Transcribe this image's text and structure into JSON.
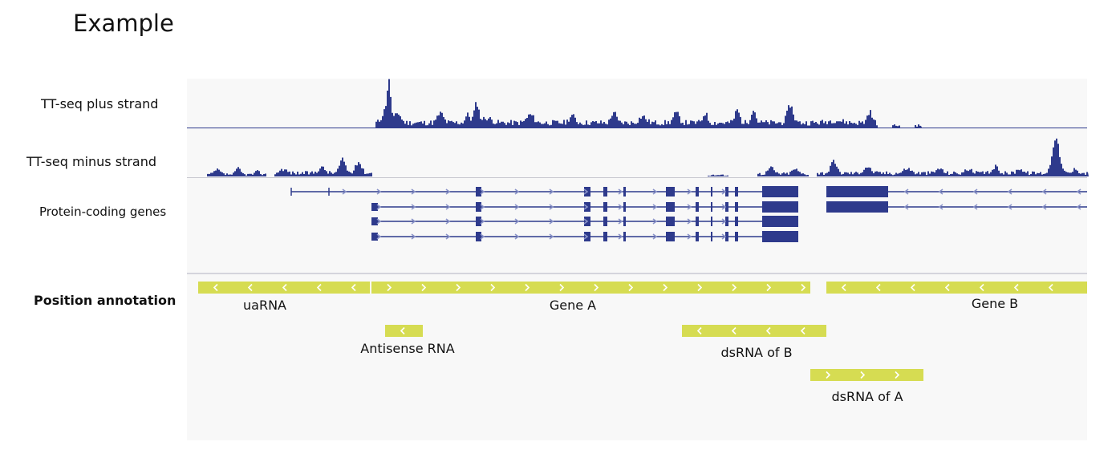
{
  "title": "Example",
  "colors": {
    "signal": "#2e3a8c",
    "gene": "#2e3a8c",
    "annotation": "#d6dc52",
    "panel": "#f8f8f8"
  },
  "tracks": {
    "plus_label": "TT-seq plus strand",
    "minus_label": "TT-seq minus strand",
    "genes_label": "Protein-coding genes"
  },
  "annotation_section": {
    "label": "Position annotation",
    "features": [
      {
        "name": "uaRNA",
        "strand": "-"
      },
      {
        "name": "Gene A",
        "strand": "+"
      },
      {
        "name": "Gene B",
        "strand": "-"
      },
      {
        "name": "Antisense RNA",
        "strand": "-"
      },
      {
        "name": "dsRNA of B",
        "strand": "-"
      },
      {
        "name": "dsRNA of A",
        "strand": "+"
      }
    ]
  }
}
